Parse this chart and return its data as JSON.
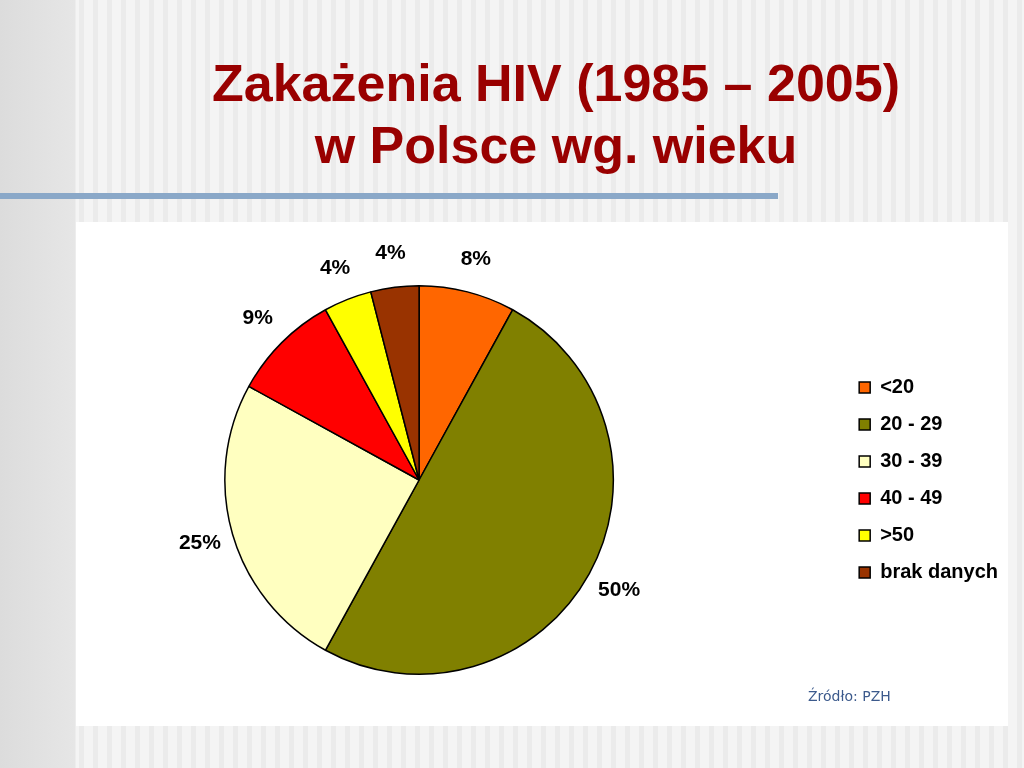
{
  "chart_data": {
    "type": "pie",
    "title": "Zakażenia HIV (1985 – 2005) w Polsce wg. wieku",
    "categories": [
      "<20",
      "20 - 29",
      "30 - 39",
      "40 - 49",
      ">50",
      "brak danych"
    ],
    "values": [
      8,
      50,
      25,
      9,
      4,
      4
    ],
    "colors": [
      "#ff6600",
      "#808000",
      "#ffffc0",
      "#ff0000",
      "#ffff00",
      "#993300"
    ],
    "value_labels": [
      "8%",
      "50%",
      "25%",
      "9%",
      "4%",
      "4%"
    ],
    "legend": "right",
    "annotations": [
      "Źródło: PZH"
    ]
  }
}
